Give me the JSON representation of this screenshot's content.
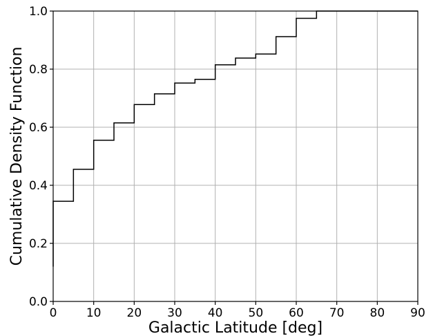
{
  "chart_data": {
    "type": "line",
    "drawstyle": "steps-post",
    "xlabel": "Galactic Latitude [deg]",
    "ylabel": "Cumulative Density Function",
    "xlim": [
      0,
      90
    ],
    "ylim": [
      0.0,
      1.0
    ],
    "grid": true,
    "x_ticks": [
      0,
      10,
      20,
      30,
      40,
      50,
      60,
      70,
      80,
      90
    ],
    "y_ticks": [
      0.0,
      0.2,
      0.4,
      0.6,
      0.8,
      1.0
    ],
    "x_tick_labels": [
      "0",
      "10",
      "20",
      "30",
      "40",
      "50",
      "60",
      "70",
      "80",
      "90"
    ],
    "y_tick_labels": [
      "0.0",
      "0.2",
      "0.4",
      "0.6",
      "0.8",
      "1.0"
    ],
    "series": [
      {
        "x": [
          0,
          0,
          5,
          10,
          15,
          20,
          25,
          30,
          35,
          40,
          45,
          50,
          55,
          60,
          65,
          90
        ],
        "y": [
          0.12,
          0.345,
          0.455,
          0.555,
          0.615,
          0.678,
          0.715,
          0.752,
          0.765,
          0.815,
          0.838,
          0.852,
          0.912,
          0.975,
          1.0,
          1.0
        ]
      }
    ]
  }
}
